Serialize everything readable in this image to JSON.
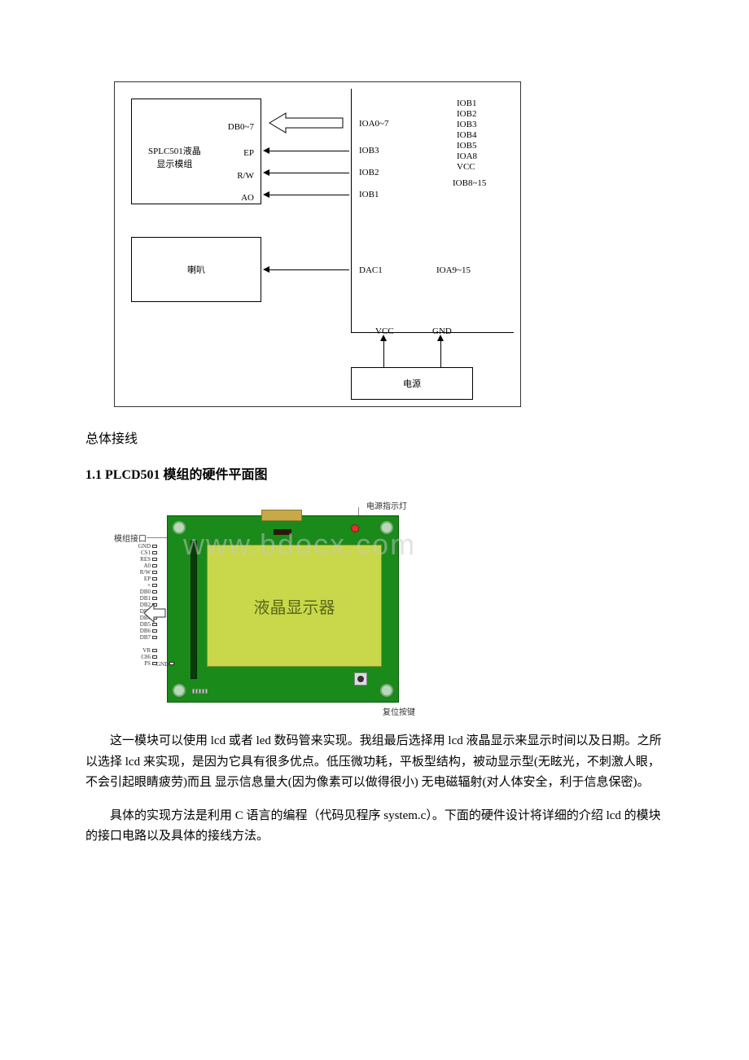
{
  "diagram1": {
    "topright_label": "",
    "left_block_label": "SPLC501液晶\n显示模组",
    "left_db_label": "DB0~7",
    "left_ep_label": "EP",
    "left_rw_label": "R/W",
    "left_ao_label": "AO",
    "mid_ioa07": "IOA0~7",
    "mid_iob3": "IOB3",
    "mid_iob2": "IOB2",
    "mid_iob1": "IOB1",
    "right_iob1": "IOB1",
    "right_iob2": "IOB2",
    "right_iob3": "IOB3",
    "right_iob4": "IOB4",
    "right_iob5": "IOB5",
    "right_ioa8": "IOA8",
    "right_vcc": "VCC",
    "right_iob815": "IOB8~15",
    "speaker_label": "喇叭",
    "dac1": "DAC1",
    "ioa915": "IOA9~15",
    "vcc": "VCC",
    "gnd": "GND",
    "power": "电源"
  },
  "caption1": "总体接线",
  "heading1": "1.1 PLCD501 模组的硬件平面图",
  "diagram2": {
    "power_led_label": "电源指示灯",
    "module_port_label": "模组接口",
    "reset_btn_label": "复位按键",
    "lcd_text": "液晶显示器",
    "watermark": "www.bdocx.com",
    "pins": [
      "GND",
      "CS1",
      "RES",
      "A0",
      "R/W",
      "EP",
      "+",
      "DB0",
      "DB1",
      "DB2",
      "DB3",
      "DB4",
      "DB5",
      "DB6",
      "DB7",
      "",
      "VR",
      "C86",
      "PS"
    ],
    "gnd_pin": "GND"
  },
  "para1": "这一模块可以使用 lcd 或者 led 数码管来实现。我组最后选择用 lcd 液晶显示来显示时间以及日期。之所以选择 lcd 来实现，是因为它具有很多优点。低压微功耗，平板型结构，被动显示型(无眩光，不刺激人眼，不会引起眼睛疲劳)而且 显示信息量大(因为像素可以做得很小) 无电磁辐射(对人体安全，利于信息保密)。",
  "para2": "具体的实现方法是利用 C 语言的编程（代码见程序 system.c）。下面的硬件设计将详细的介绍 lcd 的模块的接口电路以及具体的接线方法。"
}
